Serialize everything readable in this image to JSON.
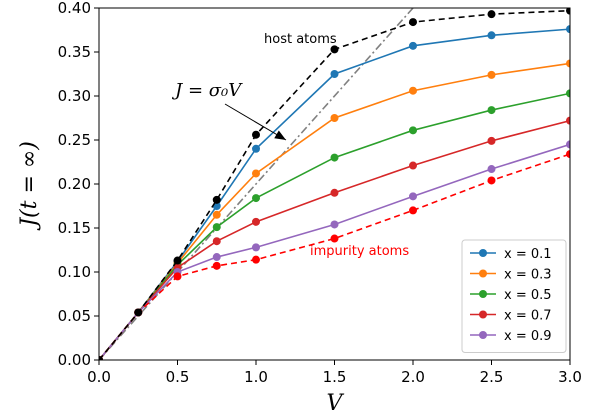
{
  "chart_data": {
    "type": "line",
    "title": "",
    "xlabel": "V",
    "ylabel": "J(t = ∞)",
    "xlim": [
      0.0,
      3.0
    ],
    "ylim": [
      0.0,
      0.4
    ],
    "xticks": [
      "0.0",
      "0.5",
      "1.0",
      "1.5",
      "2.0",
      "2.5",
      "3.0"
    ],
    "yticks": [
      "0.00",
      "0.05",
      "0.10",
      "0.15",
      "0.20",
      "0.25",
      "0.30",
      "0.35",
      "0.40"
    ],
    "grid": false,
    "legend_position": "lower-right",
    "series": [
      {
        "name": "x = 0.1",
        "color": "#1f77b4",
        "style": "solid",
        "x": [
          0.0,
          0.25,
          0.5,
          0.75,
          1.0,
          1.5,
          2.0,
          2.5,
          3.0
        ],
        "y": [
          0.0,
          0.054,
          0.112,
          0.175,
          0.24,
          0.325,
          0.357,
          0.369,
          0.376
        ]
      },
      {
        "name": "x = 0.3",
        "color": "#ff7f0e",
        "style": "solid",
        "x": [
          0.0,
          0.25,
          0.5,
          0.75,
          1.0,
          1.5,
          2.0,
          2.5,
          3.0
        ],
        "y": [
          0.0,
          0.054,
          0.11,
          0.165,
          0.212,
          0.275,
          0.306,
          0.324,
          0.337
        ]
      },
      {
        "name": "x = 0.5",
        "color": "#2ca02c",
        "style": "solid",
        "x": [
          0.0,
          0.25,
          0.5,
          0.75,
          1.0,
          1.5,
          2.0,
          2.5,
          3.0
        ],
        "y": [
          0.0,
          0.054,
          0.108,
          0.151,
          0.184,
          0.23,
          0.261,
          0.284,
          0.303
        ]
      },
      {
        "name": "x = 0.7",
        "color": "#d62728",
        "style": "solid",
        "x": [
          0.0,
          0.25,
          0.5,
          0.75,
          1.0,
          1.5,
          2.0,
          2.5,
          3.0
        ],
        "y": [
          0.0,
          0.054,
          0.105,
          0.135,
          0.157,
          0.19,
          0.221,
          0.249,
          0.272
        ]
      },
      {
        "name": "x = 0.9",
        "color": "#9467bd",
        "style": "solid",
        "x": [
          0.0,
          0.25,
          0.5,
          0.75,
          1.0,
          1.5,
          2.0,
          2.5,
          3.0
        ],
        "y": [
          0.0,
          0.054,
          0.1,
          0.117,
          0.128,
          0.154,
          0.186,
          0.217,
          0.245
        ]
      },
      {
        "name": "",
        "color": "#000000",
        "style": "dashed",
        "x": [
          0.0,
          0.25,
          0.5,
          0.75,
          1.0,
          1.5,
          2.0,
          2.5,
          3.0
        ],
        "y": [
          0.0,
          0.054,
          0.113,
          0.182,
          0.256,
          0.353,
          0.384,
          0.393,
          0.397
        ]
      },
      {
        "name": "",
        "color": "#ff0000",
        "style": "dashed",
        "x": [
          0.0,
          0.25,
          0.5,
          0.75,
          1.0,
          1.5,
          2.0,
          2.5,
          3.0
        ],
        "y": [
          0.0,
          0.054,
          0.095,
          0.107,
          0.114,
          0.138,
          0.17,
          0.204,
          0.234
        ]
      }
    ],
    "reference_line": {
      "color": "#808080",
      "style": "dashdot",
      "slope": 0.2
    },
    "annotations": {
      "host": {
        "text": "host atoms",
        "color": "#000000"
      },
      "impurity": {
        "text": "impurity atoms",
        "color": "#ff0000"
      },
      "formula": {
        "text": "J = σ₀V",
        "color": "#000000"
      }
    }
  }
}
